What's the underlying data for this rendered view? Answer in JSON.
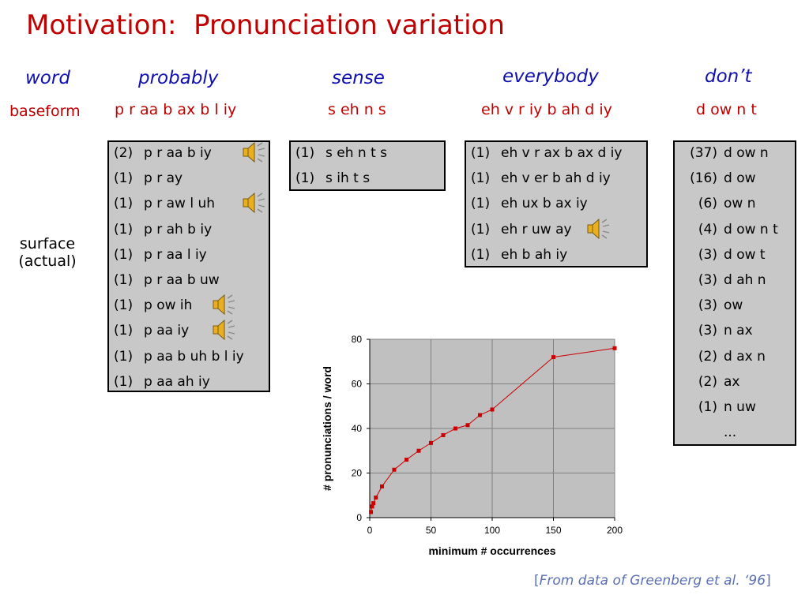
{
  "title": "Motivation:  Pronunciation variation",
  "labels": {
    "word": "word",
    "baseform": "baseform",
    "surface_line1": "surface",
    "surface_line2": "(actual)"
  },
  "columns": [
    {
      "word": "probably",
      "baseform": "p r aa b ax b l iy",
      "variants": [
        {
          "count": "(2)",
          "pron": "p r aa b iy",
          "speaker": true
        },
        {
          "count": "(1)",
          "pron": "p r ay",
          "speaker": false
        },
        {
          "count": "(1)",
          "pron": "p r aw l uh",
          "speaker": true
        },
        {
          "count": "(1)",
          "pron": "p r ah b iy",
          "speaker": false
        },
        {
          "count": "(1)",
          "pron": "p r aa l iy",
          "speaker": false
        },
        {
          "count": "(1)",
          "pron": "p r aa b uw",
          "speaker": false
        },
        {
          "count": "(1)",
          "pron": "p ow ih",
          "speaker": true
        },
        {
          "count": "(1)",
          "pron": "p aa iy",
          "speaker": true
        },
        {
          "count": "(1)",
          "pron": "p aa b uh b l iy",
          "speaker": false
        },
        {
          "count": "(1)",
          "pron": "p aa ah iy",
          "speaker": false
        }
      ]
    },
    {
      "word": "sense",
      "baseform": "s eh n s",
      "variants": [
        {
          "count": "(1)",
          "pron": "s eh n t s",
          "speaker": false
        },
        {
          "count": "(1)",
          "pron": "s ih t s",
          "speaker": false
        }
      ]
    },
    {
      "word": "everybody",
      "baseform": "eh v r iy b ah d iy",
      "variants": [
        {
          "count": "(1)",
          "pron": "eh v r ax b ax d iy",
          "speaker": false
        },
        {
          "count": "(1)",
          "pron": "eh v er b ah d iy",
          "speaker": false
        },
        {
          "count": "(1)",
          "pron": "eh ux b ax iy",
          "speaker": false
        },
        {
          "count": "(1)",
          "pron": "eh r uw ay",
          "speaker": true
        },
        {
          "count": "(1)",
          "pron": "eh b ah iy",
          "speaker": false
        }
      ]
    },
    {
      "word": "don’t",
      "baseform": "d ow n t",
      "variants": [
        {
          "count": "(37)",
          "pron": "d ow n",
          "speaker": false
        },
        {
          "count": "(16)",
          "pron": "d ow",
          "speaker": false
        },
        {
          "count": "(6)",
          "pron": "ow n",
          "speaker": false
        },
        {
          "count": "(4)",
          "pron": "d ow n t",
          "speaker": false
        },
        {
          "count": "(3)",
          "pron": "d ow t",
          "speaker": false
        },
        {
          "count": "(3)",
          "pron": "d ah n",
          "speaker": false
        },
        {
          "count": "(3)",
          "pron": "ow",
          "speaker": false
        },
        {
          "count": "(3)",
          "pron": "n ax",
          "speaker": false
        },
        {
          "count": "(2)",
          "pron": "d ax n",
          "speaker": false
        },
        {
          "count": "(2)",
          "pron": "ax",
          "speaker": false
        },
        {
          "count": "(1)",
          "pron": "n uw",
          "speaker": false
        },
        {
          "count": "",
          "pron": "...",
          "speaker": false
        }
      ]
    }
  ],
  "chart_data": {
    "type": "line",
    "xlabel": "minimum # occurrences",
    "ylabel": "# pronunciations / word",
    "xlim": [
      0,
      200
    ],
    "ylim": [
      0,
      80
    ],
    "xticks": [
      0,
      50,
      100,
      150,
      200
    ],
    "yticks": [
      0,
      20,
      40,
      60,
      80
    ],
    "grid": true,
    "x": [
      1,
      2,
      3,
      5,
      10,
      20,
      30,
      40,
      50,
      60,
      70,
      80,
      90,
      100,
      150,
      200
    ],
    "y": [
      2.5,
      5,
      6.5,
      9,
      14,
      21.5,
      26,
      30,
      33.5,
      37,
      40,
      41.5,
      46,
      48.5,
      72,
      76
    ],
    "line_color": "#cc0000",
    "plot_bg": "#c0c0c0"
  },
  "citation": {
    "open": "[",
    "text": "From data of Greenberg et al. ‘96",
    "close": "]"
  },
  "colors": {
    "title": "#c00000",
    "word": "#1010b0",
    "baseform": "#c00000",
    "citation": "#5b6fb5"
  }
}
